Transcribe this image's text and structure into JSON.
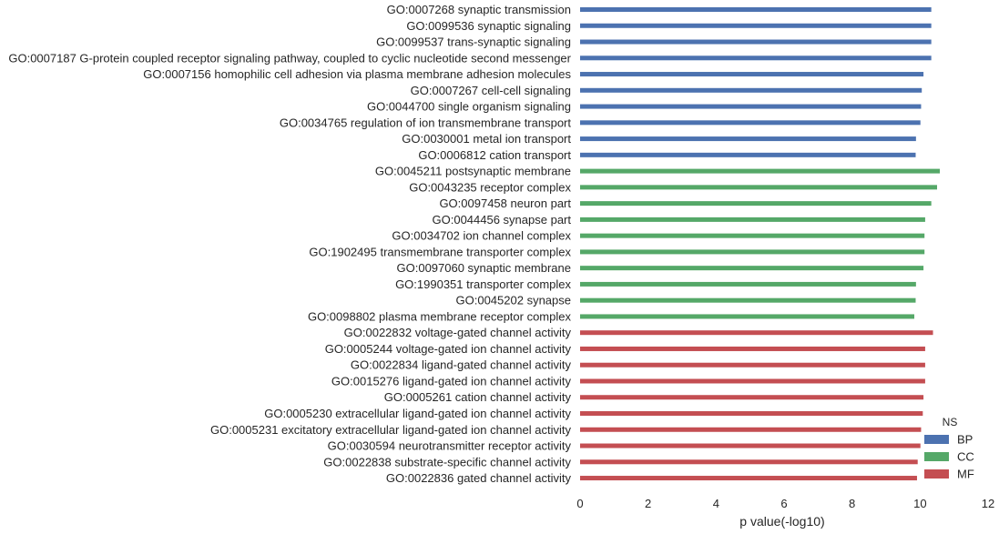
{
  "chart_data": {
    "type": "bar",
    "orientation": "horizontal",
    "xlabel": "p value(-log10)",
    "ylabel": "",
    "xlim": [
      0,
      12
    ],
    "xticks": [
      "0",
      "2",
      "4",
      "6",
      "8",
      "10",
      "12"
    ],
    "grid": false,
    "legend": {
      "title": "NS",
      "placement": "bottom-right",
      "entries": [
        {
          "name": "BP",
          "color": "#4c72b0"
        },
        {
          "name": "CC",
          "color": "#55a868"
        },
        {
          "name": "MF",
          "color": "#c44e52"
        }
      ]
    },
    "categories": [
      "GO:0007268 synaptic transmission",
      "GO:0099536 synaptic signaling",
      "GO:0099537 trans-synaptic signaling",
      "GO:0007187 G-protein coupled receptor signaling pathway, coupled to cyclic nucleotide second messenger",
      "GO:0007156 homophilic cell adhesion via plasma membrane adhesion molecules",
      "GO:0007267 cell-cell signaling",
      "GO:0044700 single organism signaling",
      "GO:0034765 regulation of ion transmembrane transport",
      "GO:0030001 metal ion transport",
      "GO:0006812 cation transport",
      "GO:0045211 postsynaptic membrane",
      "GO:0043235 receptor complex",
      "GO:0097458 neuron part",
      "GO:0044456 synapse part",
      "GO:0034702 ion channel complex",
      "GO:1902495 transmembrane transporter complex",
      "GO:0097060 synaptic membrane",
      "GO:1990351 transporter complex",
      "GO:0045202 synapse",
      "GO:0098802 plasma membrane receptor complex",
      "GO:0022832 voltage-gated channel activity",
      "GO:0005244 voltage-gated ion channel activity",
      "GO:0022834 ligand-gated channel activity",
      "GO:0015276 ligand-gated ion channel activity",
      "GO:0005261 cation channel activity",
      "GO:0005230 extracellular ligand-gated ion channel activity",
      "GO:0005231 excitatory extracellular ligand-gated ion channel activity",
      "GO:0030594 neurotransmitter receptor activity",
      "GO:0022838 substrate-specific channel activity",
      "GO:0022836 gated channel activity"
    ],
    "values": [
      10.33,
      10.33,
      10.33,
      10.33,
      10.1,
      10.05,
      10.03,
      10.01,
      9.88,
      9.87,
      10.58,
      10.5,
      10.33,
      10.15,
      10.13,
      10.13,
      10.1,
      9.88,
      9.87,
      9.83,
      10.38,
      10.15,
      10.15,
      10.15,
      10.1,
      10.08,
      10.03,
      10.01,
      9.93,
      9.91
    ],
    "groups": [
      "BP",
      "BP",
      "BP",
      "BP",
      "BP",
      "BP",
      "BP",
      "BP",
      "BP",
      "BP",
      "CC",
      "CC",
      "CC",
      "CC",
      "CC",
      "CC",
      "CC",
      "CC",
      "CC",
      "CC",
      "MF",
      "MF",
      "MF",
      "MF",
      "MF",
      "MF",
      "MF",
      "MF",
      "MF",
      "MF"
    ]
  }
}
